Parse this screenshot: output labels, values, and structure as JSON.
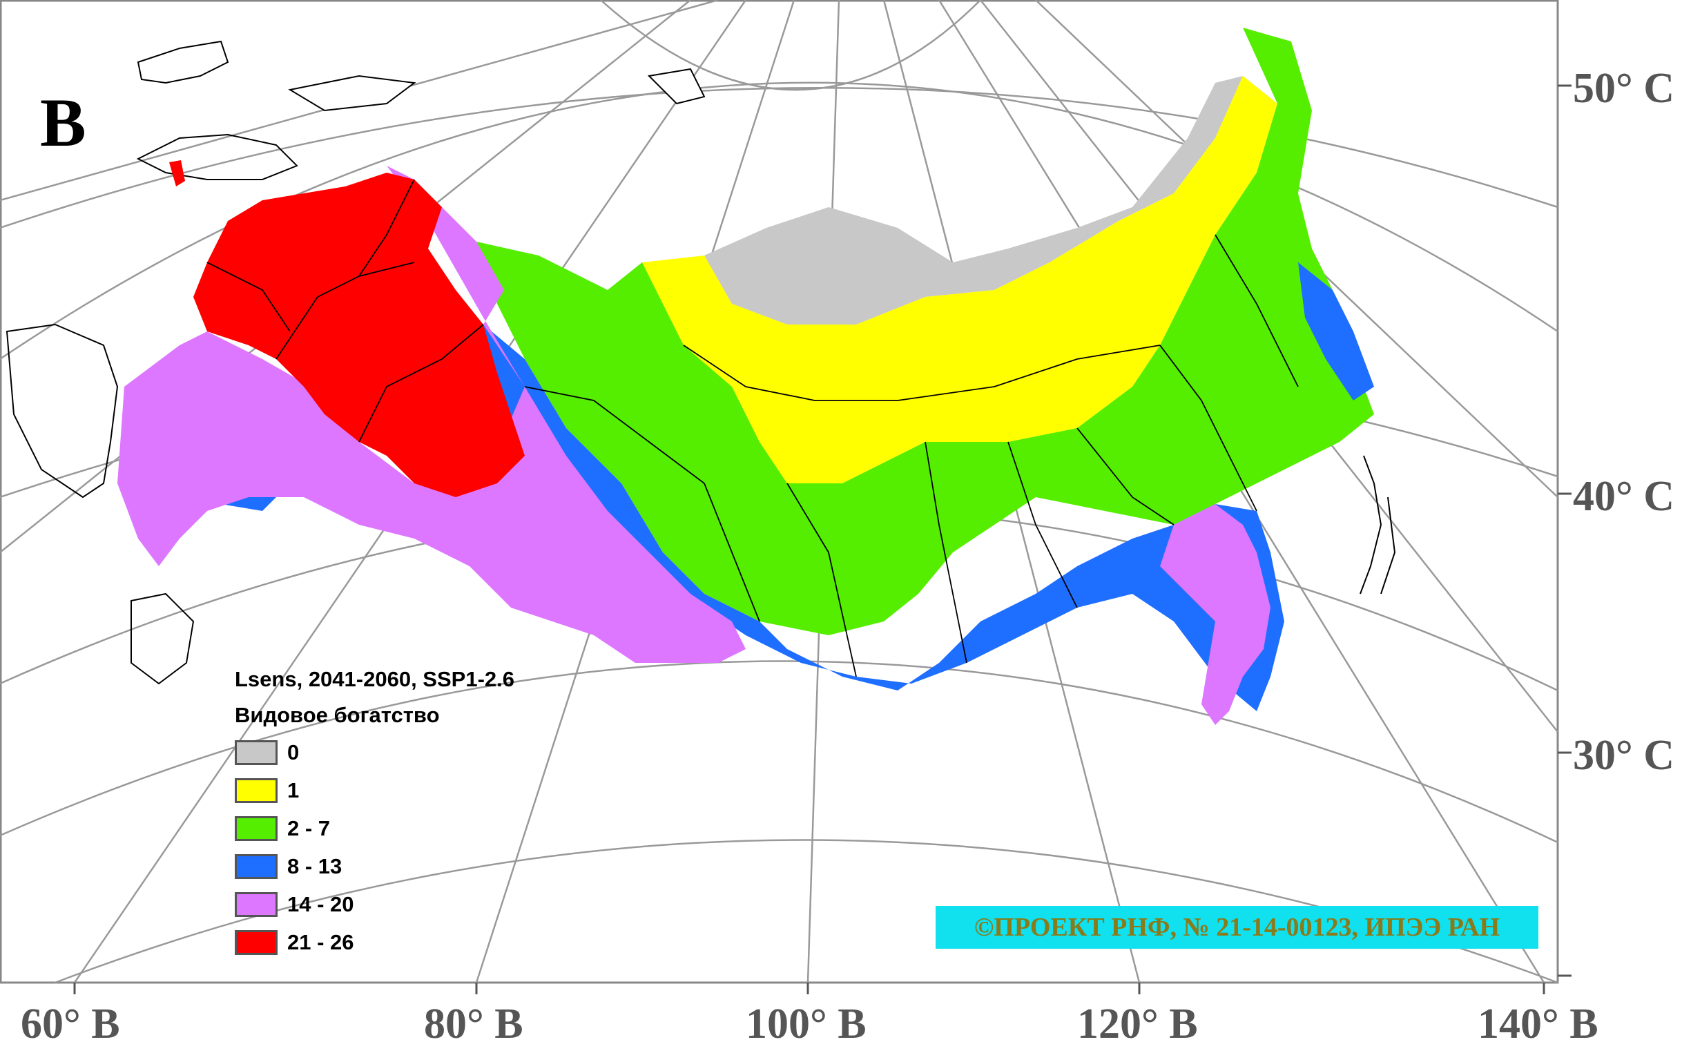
{
  "panel_letter": "В",
  "latitude_labels": [
    "50° С",
    "40° С",
    "30° С"
  ],
  "longitude_labels": [
    "60° В",
    "80° В",
    "100° В",
    "120° В",
    "140° В"
  ],
  "legend": {
    "title_line1": "Lsens, 2041-2060, SSP1-2.6",
    "title_line2": "Видовое богатство",
    "classes": [
      {
        "label": "0",
        "color": "#c8c8c8"
      },
      {
        "label": "1",
        "color": "#ffff00"
      },
      {
        "label": "2 - 7",
        "color": "#55ee00"
      },
      {
        "label": "8 - 13",
        "color": "#1e6eff"
      },
      {
        "label": "14 - 20",
        "color": "#dd77ff"
      },
      {
        "label": "21 - 26",
        "color": "#ff0000"
      }
    ]
  },
  "copyright": "©ПРОЕКТ РНФ, № 21-14-00123, ИПЭЭ РАН",
  "colors": {
    "graticule": "#999999",
    "label_gray": "#555555",
    "copyright_bg": "#11e0ee",
    "copyright_text": "#8a7a1a"
  }
}
